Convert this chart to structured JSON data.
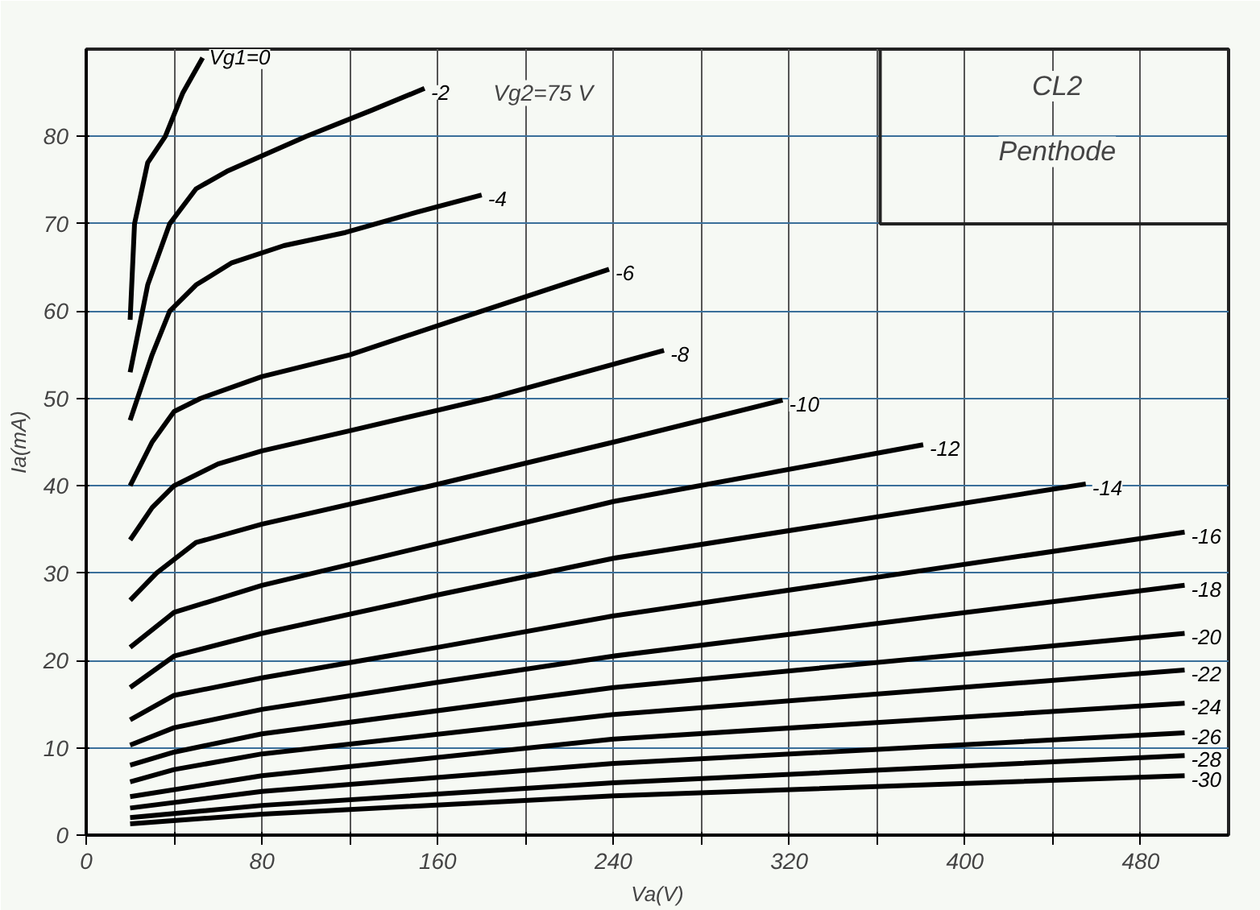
{
  "chart_data": {
    "type": "line",
    "xlabel": "Va(V)",
    "ylabel": "Ia(mA)",
    "annotations": [
      "Vg2=75 V",
      "CL2",
      "Penthode"
    ],
    "xlim": [
      0,
      520
    ],
    "ylim": [
      0,
      90
    ],
    "xticks": [
      0,
      {
        "value": 40,
        "label": null
      },
      80,
      {
        "value": 120,
        "label": null
      },
      160,
      {
        "value": 200,
        "label": null
      },
      240,
      {
        "value": 280,
        "label": null
      },
      320,
      {
        "value": 360,
        "label": null
      },
      400,
      {
        "value": 440,
        "label": null
      },
      480
    ],
    "yticks": [
      0,
      10,
      20,
      30,
      40,
      50,
      60,
      70,
      80
    ],
    "grid": true,
    "marker": "none",
    "line_style": "solid",
    "series": [
      {
        "name": "Vg1=0",
        "color": "#000000",
        "x": [
          20,
          22,
          28,
          36,
          44,
          53
        ],
        "values": [
          59,
          70,
          77,
          80,
          85,
          89
        ]
      },
      {
        "name": "-2",
        "color": "#000000",
        "x": [
          20,
          28,
          38,
          50,
          64,
          100,
          130,
          154
        ],
        "values": [
          53,
          63,
          70,
          74,
          76,
          80,
          83,
          85.5
        ]
      },
      {
        "name": "-4",
        "color": "#000000",
        "x": [
          20,
          30,
          38,
          50,
          66,
          90,
          118,
          150,
          180
        ],
        "values": [
          47.5,
          55,
          60,
          63,
          65.5,
          67.5,
          69,
          71.3,
          73.3
        ]
      },
      {
        "name": "-6",
        "color": "#000000",
        "x": [
          20,
          30,
          40,
          52,
          80,
          120,
          180,
          238
        ],
        "values": [
          40,
          45,
          48.5,
          50,
          52.5,
          55,
          60,
          64.8
        ]
      },
      {
        "name": "-8",
        "color": "#000000",
        "x": [
          20,
          30,
          40,
          60,
          80,
          120,
          183,
          263
        ],
        "values": [
          33.8,
          37.5,
          40,
          42.5,
          44,
          46.3,
          50,
          55.5
        ]
      },
      {
        "name": "-10",
        "color": "#000000",
        "x": [
          20,
          32,
          50,
          80,
          157,
          240,
          317
        ],
        "values": [
          26.9,
          30,
          33.5,
          35.6,
          40,
          45,
          49.8
        ]
      },
      {
        "name": "-12",
        "color": "#000000",
        "x": [
          20,
          40,
          80,
          120,
          240,
          381
        ],
        "values": [
          21.5,
          25.5,
          28.6,
          31,
          38.2,
          44.7
        ]
      },
      {
        "name": "-14",
        "color": "#000000",
        "x": [
          20,
          40,
          80,
          160,
          240,
          455
        ],
        "values": [
          16.9,
          20.5,
          23.1,
          27.5,
          31.7,
          40.2
        ]
      },
      {
        "name": "-16",
        "color": "#000000",
        "x": [
          20,
          40,
          80,
          160,
          240,
          500
        ],
        "values": [
          13.2,
          16,
          18,
          21.5,
          25.1,
          34.7
        ]
      },
      {
        "name": "-18",
        "color": "#000000",
        "x": [
          20,
          40,
          80,
          160,
          240,
          500
        ],
        "values": [
          10.3,
          12.3,
          14.4,
          17.5,
          20.5,
          28.6
        ]
      },
      {
        "name": "-20",
        "color": "#000000",
        "x": [
          20,
          40,
          80,
          240,
          500
        ],
        "values": [
          8,
          9.5,
          11.6,
          16.9,
          23.1
        ]
      },
      {
        "name": "-22",
        "color": "#000000",
        "x": [
          20,
          40,
          80,
          240,
          500
        ],
        "values": [
          6.1,
          7.5,
          9.3,
          13.8,
          18.9
        ]
      },
      {
        "name": "-24",
        "color": "#000000",
        "x": [
          20,
          80,
          240,
          500
        ],
        "values": [
          4.4,
          6.8,
          11,
          15.1
        ]
      },
      {
        "name": "-26",
        "color": "#000000",
        "x": [
          20,
          80,
          240,
          500
        ],
        "values": [
          3.1,
          5,
          8.2,
          11.7
        ]
      },
      {
        "name": "-28",
        "color": "#000000",
        "x": [
          20,
          80,
          240,
          500
        ],
        "values": [
          2,
          3.4,
          6,
          9.1
        ]
      },
      {
        "name": "-30",
        "color": "#000000",
        "x": [
          20,
          80,
          240,
          500
        ],
        "values": [
          1.3,
          2.4,
          4.5,
          6.8
        ]
      }
    ]
  }
}
